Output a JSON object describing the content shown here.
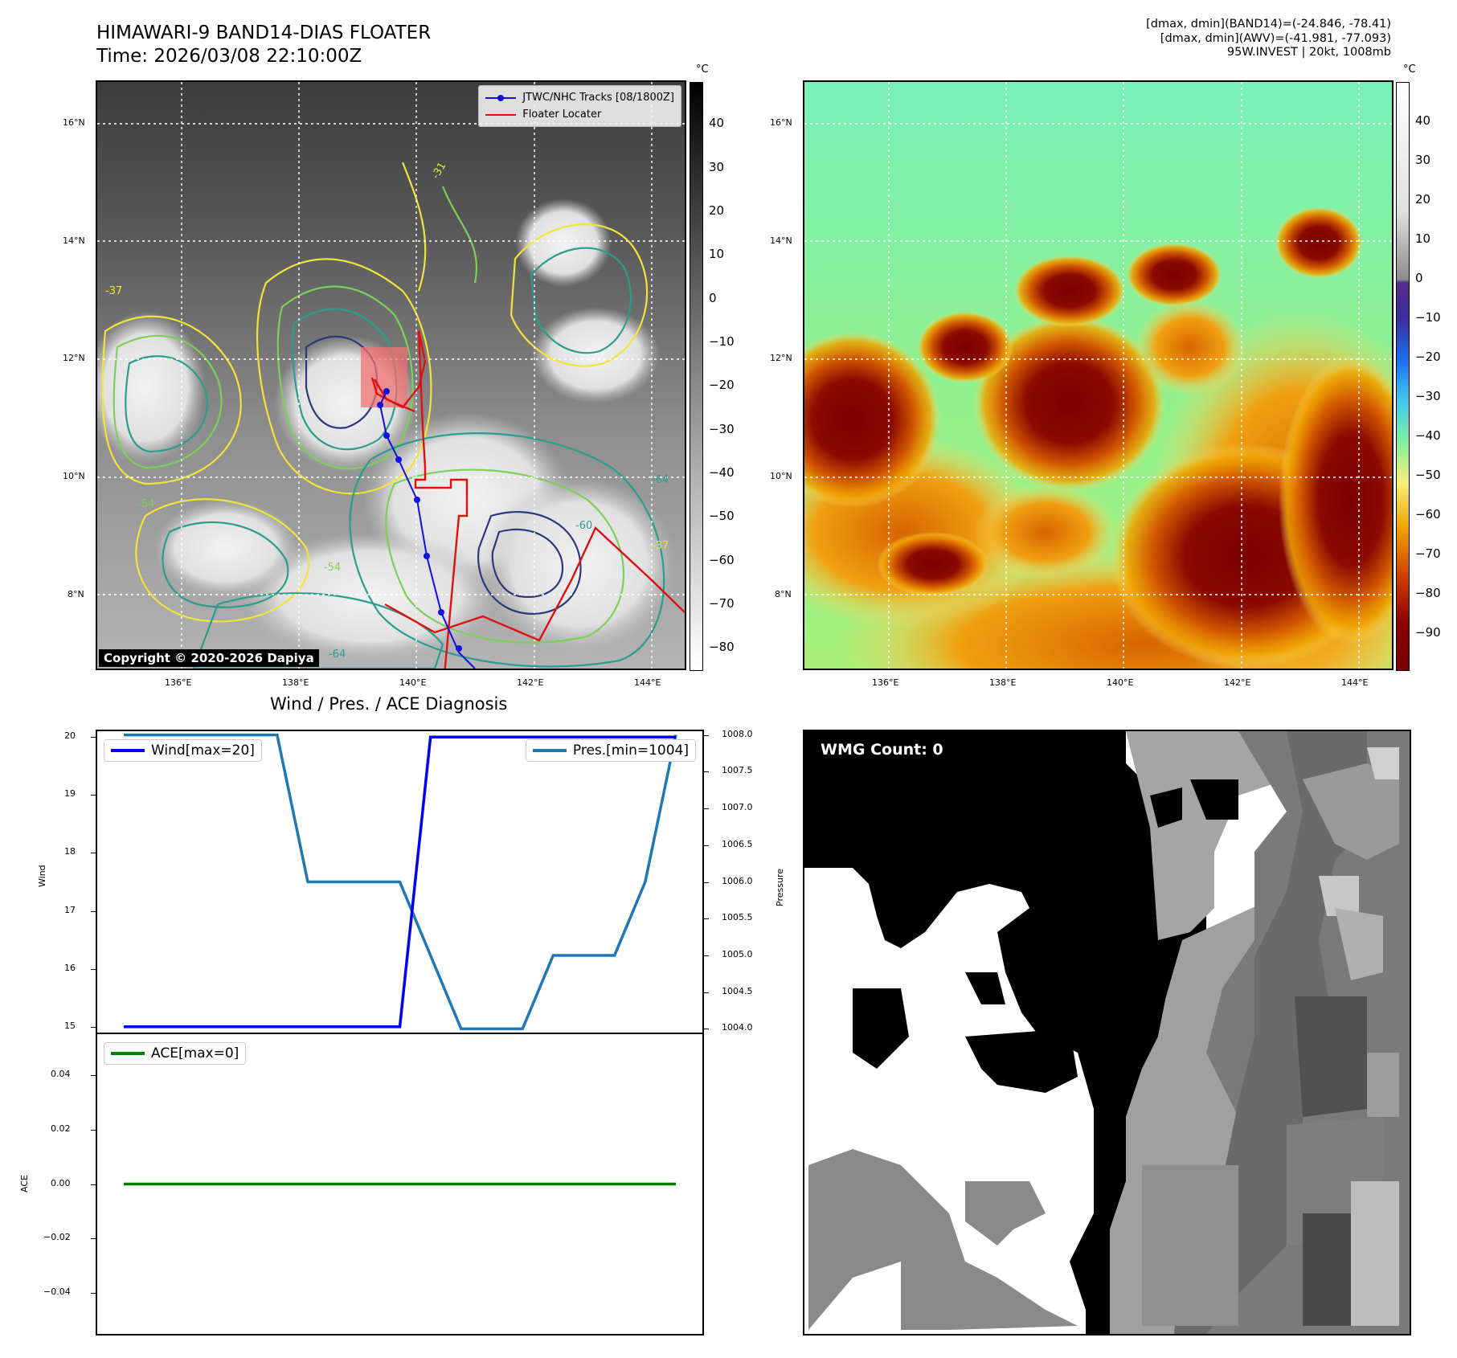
{
  "header": {
    "title_line1": "HIMAWARI-9 BAND14-DIAS FLOATER",
    "title_line2": "Time: 2026/03/08 22:10:00Z",
    "info_line1": "[dmax, dmin](BAND14)=(-24.846, -78.41)",
    "info_line2": "[dmax, dmin](AWV)=(-41.981, -77.093)",
    "info_line3": "95W.INVEST | 20kt, 1008mb"
  },
  "map_axes": {
    "lon_ticks": [
      "136°E",
      "138°E",
      "140°E",
      "142°E",
      "144°E"
    ],
    "lat_ticks": [
      "16°N",
      "14°N",
      "12°N",
      "10°N",
      "8°N"
    ]
  },
  "ir_panel": {
    "colorbar_unit": "°C",
    "colorbar_ticks": [
      "40",
      "30",
      "20",
      "10",
      "0",
      "−10",
      "−20",
      "−30",
      "−40",
      "−50",
      "−60",
      "−70",
      "−80"
    ],
    "legend": {
      "tracks_label": "JTWC/NHC Tracks [08/1800Z]",
      "floater_label": "Floater Locater"
    },
    "copyright": "Copyright © 2020-2026 Dapiya",
    "contour_labels": [
      "-31",
      "-37",
      "-54",
      "-64",
      "-54",
      "-60",
      "-64",
      "-37"
    ],
    "colors": {
      "track": "#1010e0",
      "floater": "#e01010",
      "contour_yellow": "#f2e23a",
      "contour_lime": "#7ccf5a",
      "contour_teal": "#2a9d8f",
      "contour_navy": "#283a7a"
    }
  },
  "awv_panel": {
    "colorbar_unit": "°C",
    "colorbar_ticks": [
      "40",
      "30",
      "20",
      "10",
      "0",
      "−10",
      "−20",
      "−30",
      "−40",
      "−50",
      "−60",
      "−70",
      "−80",
      "−90"
    ]
  },
  "wmg_panel": {
    "label": "WMG Count: 0"
  },
  "chart_data": [
    {
      "type": "line",
      "title": "Wind / Pres. / ACE Diagnosis",
      "x": [
        0,
        1,
        2,
        3,
        4,
        5,
        6,
        7,
        8,
        9,
        10,
        11,
        12,
        13,
        14,
        15,
        16,
        17,
        18
      ],
      "series": [
        {
          "name": "Wind[max=20]",
          "axis": "left",
          "color": "#0000ee",
          "values": [
            15,
            15,
            15,
            15,
            15,
            15,
            15,
            15,
            15,
            15,
            20,
            20,
            20,
            20,
            20,
            20,
            20,
            20,
            20
          ]
        },
        {
          "name": "Pres.[min=1004]",
          "axis": "right",
          "color": "#1f77b4",
          "values": [
            1008,
            1008,
            1008,
            1008,
            1008,
            1008,
            1006,
            1006,
            1006,
            1006,
            1005,
            1004,
            1004,
            1004,
            1005,
            1005,
            1005,
            1006,
            1008
          ]
        }
      ],
      "ylabel": "Wind",
      "ylabel_right": "Pressure",
      "ylim": [
        14.9,
        20.1
      ],
      "ylim_right": [
        1003.95,
        1008.05
      ],
      "yticks": [
        "20",
        "19",
        "18",
        "17",
        "16",
        "15"
      ],
      "yticks_right": [
        "1008.0",
        "1007.5",
        "1007.0",
        "1006.5",
        "1006.0",
        "1005.5",
        "1005.0",
        "1004.5",
        "1004.0"
      ],
      "legend_placement": "top"
    },
    {
      "type": "line",
      "x": [
        0,
        1,
        2,
        3,
        4,
        5,
        6,
        7,
        8,
        9,
        10,
        11,
        12,
        13,
        14,
        15,
        16,
        17,
        18
      ],
      "series": [
        {
          "name": "ACE[max=0]",
          "color": "#008000",
          "values": [
            0,
            0,
            0,
            0,
            0,
            0,
            0,
            0,
            0,
            0,
            0,
            0,
            0,
            0,
            0,
            0,
            0,
            0,
            0
          ]
        }
      ],
      "ylabel": "ACE",
      "ylim": [
        -0.055,
        0.055
      ],
      "yticks": [
        "0.04",
        "0.02",
        "0.00",
        "−0.02",
        "−0.04"
      ],
      "legend_placement": "top-left"
    }
  ]
}
